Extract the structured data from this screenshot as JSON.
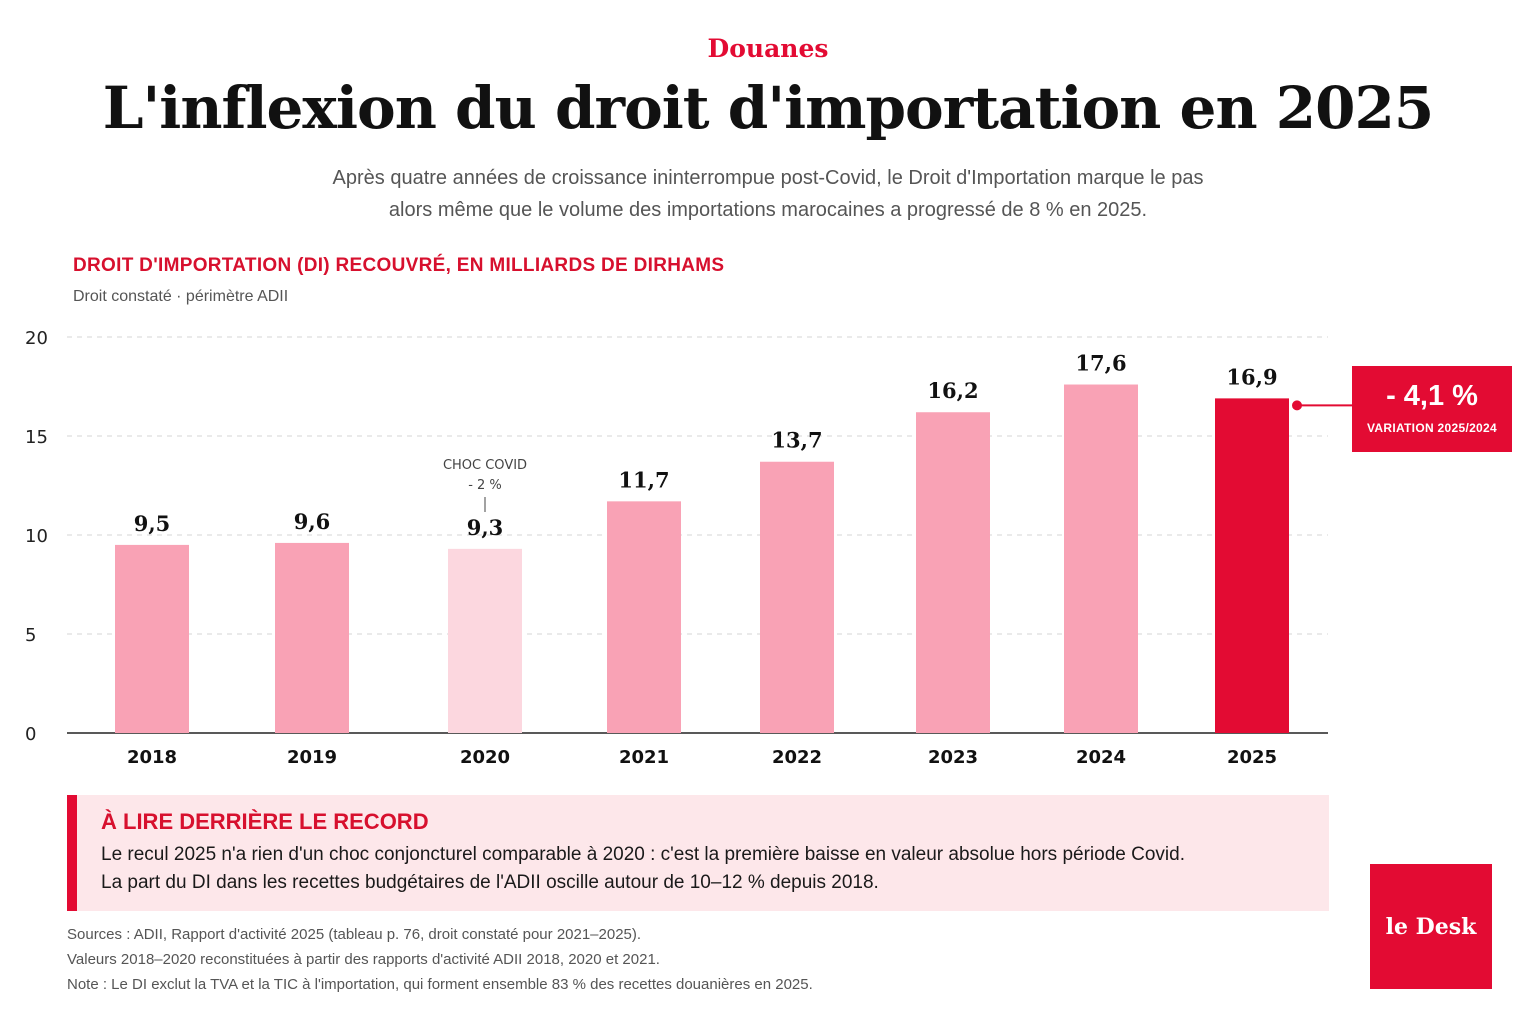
{
  "header": {
    "kicker": "Douanes",
    "title": "L'inflexion du droit d'importation en 2025",
    "subtitle_line1": "Après quatre années de croissance ininterrompue post-Covid, le Droit d'Importation marque le pas",
    "subtitle_line2": "alors même que le volume des importations marocaines a progressé de 8 % en 2025."
  },
  "chart_data": {
    "type": "bar",
    "title": "DROIT D'IMPORTATION (DI) RECOUVRÉ, EN MILLIARDS DE DIRHAMS",
    "subtitle": "Droit constaté · périmètre ADII",
    "categories": [
      "2018",
      "2019",
      "2020",
      "2021",
      "2022",
      "2023",
      "2024",
      "2025"
    ],
    "values": [
      9.5,
      9.6,
      9.3,
      11.7,
      13.7,
      16.2,
      17.6,
      16.9
    ],
    "value_labels": [
      "9,5",
      "9,6",
      "9,3",
      "11,7",
      "13,7",
      "16,2",
      "17,6",
      "16,9"
    ],
    "yticks": [
      0,
      5,
      10,
      15,
      20
    ],
    "ylim": [
      0,
      20
    ],
    "grid": true,
    "xlabel": "",
    "ylabel": "",
    "colors": {
      "default": "#f9a2b5",
      "covid": "#fcd7df",
      "highlight": "#e30b33"
    },
    "annotation_2020": {
      "line1": "CHOC COVID",
      "line2": "- 2 %"
    }
  },
  "callout": {
    "value": "- 4,1 %",
    "label": "VARIATION 2025/2024"
  },
  "insight": {
    "heading": "À LIRE DERRIÈRE LE RECORD",
    "line1": "Le recul 2025 n'a rien d'un choc conjoncturel comparable à 2020 : c'est la première baisse en valeur absolue hors période Covid.",
    "line2": "La part du DI dans les recettes budgétaires de l'ADII oscille autour de 10–12 % depuis 2018."
  },
  "notes": {
    "line1": "Sources : ADII, Rapport d'activité 2025 (tableau p. 76, droit constaté pour 2021–2025).",
    "line2": "Valeurs 2018–2020 reconstituées à partir des rapports d'activité ADII 2018, 2020 et 2021.",
    "line3": "Note : Le DI exclut la TVA et la TIC à l'importation, qui forment ensemble 83 % des recettes douanières en 2025."
  },
  "logo": {
    "text": "le Desk"
  }
}
